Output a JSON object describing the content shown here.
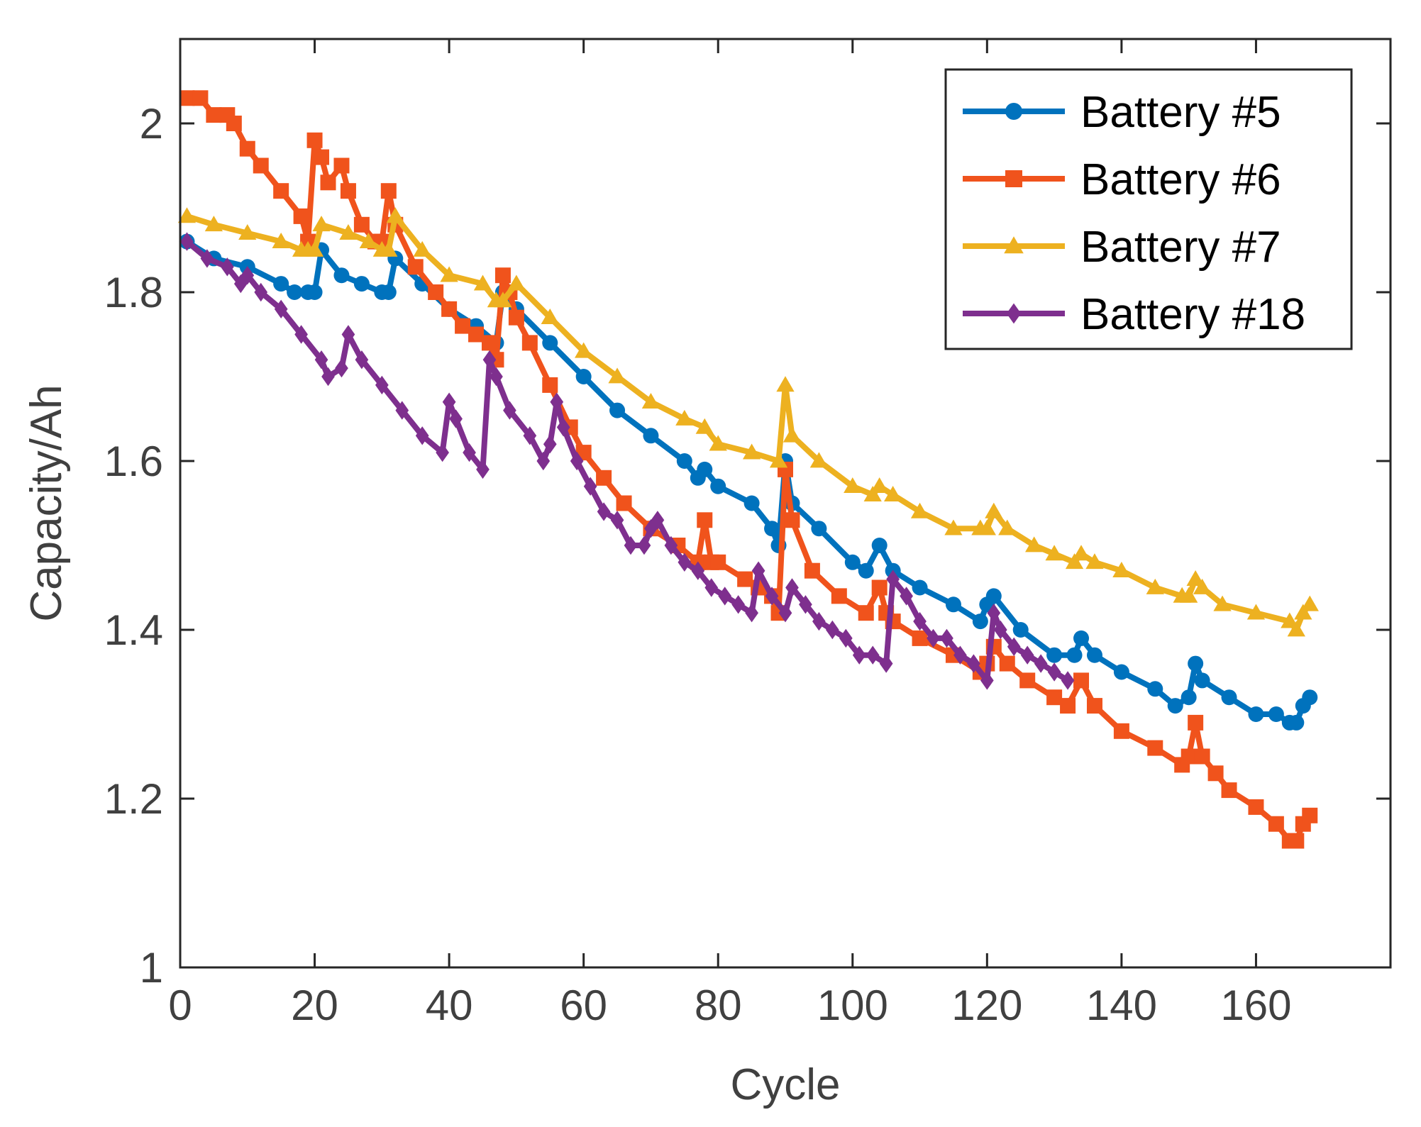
{
  "chart_data": {
    "type": "line",
    "title": "",
    "xlabel": "Cycle",
    "ylabel": "Capacity/Ah",
    "xlim": [
      0,
      180
    ],
    "ylim": [
      1,
      2.1
    ],
    "xticks": [
      0,
      20,
      40,
      60,
      80,
      100,
      120,
      140,
      160
    ],
    "xtick_labels": [
      "0",
      "20",
      "40",
      "60",
      "80",
      "100",
      "120",
      "140",
      "160"
    ],
    "yticks": [
      1,
      1.2,
      1.4,
      1.6,
      1.8,
      2
    ],
    "ytick_labels": [
      "1",
      "1.2",
      "1.4",
      "1.6",
      "1.8",
      "2"
    ],
    "grid": false,
    "legend_position": "top-right",
    "series": [
      {
        "name": "Battery #5",
        "color": "#0072BD",
        "marker": "circle",
        "x": [
          1,
          5,
          10,
          15,
          17,
          19,
          20,
          21,
          24,
          27,
          30,
          31,
          32,
          36,
          40,
          44,
          47,
          48,
          50,
          55,
          60,
          65,
          70,
          75,
          77,
          78,
          80,
          85,
          88,
          89,
          90,
          91,
          95,
          100,
          102,
          104,
          106,
          110,
          115,
          119,
          120,
          121,
          125,
          130,
          133,
          134,
          136,
          140,
          145,
          148,
          150,
          151,
          152,
          156,
          160,
          163,
          165,
          166,
          167,
          168
        ],
        "y": [
          1.86,
          1.84,
          1.83,
          1.81,
          1.8,
          1.8,
          1.8,
          1.85,
          1.82,
          1.81,
          1.8,
          1.8,
          1.84,
          1.81,
          1.78,
          1.76,
          1.74,
          1.8,
          1.78,
          1.74,
          1.7,
          1.66,
          1.63,
          1.6,
          1.58,
          1.59,
          1.57,
          1.55,
          1.52,
          1.5,
          1.6,
          1.55,
          1.52,
          1.48,
          1.47,
          1.5,
          1.47,
          1.45,
          1.43,
          1.41,
          1.43,
          1.44,
          1.4,
          1.37,
          1.37,
          1.39,
          1.37,
          1.35,
          1.33,
          1.31,
          1.32,
          1.36,
          1.34,
          1.32,
          1.3,
          1.3,
          1.29,
          1.29,
          1.31,
          1.32
        ]
      },
      {
        "name": "Battery #6",
        "color": "#F0531C",
        "marker": "square",
        "x": [
          1,
          3,
          5,
          7,
          8,
          10,
          12,
          15,
          18,
          19,
          20,
          21,
          22,
          24,
          25,
          27,
          29,
          30,
          31,
          32,
          35,
          38,
          40,
          42,
          44,
          46,
          47,
          48,
          49,
          50,
          52,
          55,
          58,
          60,
          63,
          66,
          70,
          74,
          77,
          78,
          79,
          80,
          84,
          86,
          88,
          89,
          90,
          91,
          94,
          98,
          102,
          104,
          105,
          106,
          110,
          115,
          119,
          120,
          121,
          123,
          126,
          130,
          132,
          134,
          136,
          140,
          145,
          149,
          150,
          151,
          152,
          154,
          156,
          160,
          163,
          165,
          166,
          167,
          168
        ],
        "y": [
          2.03,
          2.03,
          2.01,
          2.01,
          2.0,
          1.97,
          1.95,
          1.92,
          1.89,
          1.86,
          1.98,
          1.96,
          1.93,
          1.95,
          1.92,
          1.88,
          1.86,
          1.86,
          1.92,
          1.88,
          1.83,
          1.8,
          1.78,
          1.76,
          1.75,
          1.74,
          1.72,
          1.82,
          1.8,
          1.77,
          1.74,
          1.69,
          1.64,
          1.61,
          1.58,
          1.55,
          1.52,
          1.5,
          1.48,
          1.53,
          1.48,
          1.48,
          1.46,
          1.45,
          1.44,
          1.42,
          1.59,
          1.53,
          1.47,
          1.44,
          1.42,
          1.45,
          1.42,
          1.41,
          1.39,
          1.37,
          1.35,
          1.36,
          1.38,
          1.36,
          1.34,
          1.32,
          1.31,
          1.34,
          1.31,
          1.28,
          1.26,
          1.24,
          1.25,
          1.29,
          1.25,
          1.23,
          1.21,
          1.19,
          1.17,
          1.15,
          1.15,
          1.17,
          1.18
        ]
      },
      {
        "name": "Battery #7",
        "color": "#EDB120",
        "marker": "triangle",
        "x": [
          1,
          5,
          10,
          15,
          18,
          19,
          20,
          21,
          25,
          28,
          30,
          31,
          32,
          36,
          40,
          45,
          47,
          48,
          50,
          55,
          60,
          65,
          70,
          75,
          78,
          80,
          85,
          89,
          90,
          91,
          95,
          100,
          103,
          104,
          106,
          110,
          115,
          119,
          120,
          121,
          123,
          127,
          130,
          133,
          134,
          136,
          140,
          145,
          149,
          150,
          151,
          152,
          155,
          160,
          165,
          166,
          167,
          168
        ],
        "y": [
          1.89,
          1.88,
          1.87,
          1.86,
          1.85,
          1.85,
          1.85,
          1.88,
          1.87,
          1.86,
          1.85,
          1.85,
          1.89,
          1.85,
          1.82,
          1.81,
          1.79,
          1.79,
          1.81,
          1.77,
          1.73,
          1.7,
          1.67,
          1.65,
          1.64,
          1.62,
          1.61,
          1.6,
          1.69,
          1.63,
          1.6,
          1.57,
          1.56,
          1.57,
          1.56,
          1.54,
          1.52,
          1.52,
          1.52,
          1.54,
          1.52,
          1.5,
          1.49,
          1.48,
          1.49,
          1.48,
          1.47,
          1.45,
          1.44,
          1.44,
          1.46,
          1.45,
          1.43,
          1.42,
          1.41,
          1.4,
          1.42,
          1.43
        ]
      },
      {
        "name": "Battery #18",
        "color": "#7E2F8E",
        "marker": "diamond",
        "x": [
          1,
          4,
          7,
          9,
          10,
          12,
          15,
          18,
          21,
          22,
          24,
          25,
          27,
          30,
          33,
          36,
          39,
          40,
          41,
          43,
          45,
          46,
          47,
          49,
          52,
          54,
          55,
          56,
          57,
          59,
          61,
          63,
          65,
          67,
          69,
          70,
          71,
          73,
          75,
          77,
          79,
          81,
          83,
          85,
          86,
          88,
          90,
          91,
          93,
          95,
          97,
          99,
          101,
          103,
          105,
          106,
          108,
          110,
          112,
          114,
          116,
          118,
          120,
          121,
          122,
          124,
          126,
          128,
          130,
          132
        ],
        "y": [
          1.86,
          1.84,
          1.83,
          1.81,
          1.82,
          1.8,
          1.78,
          1.75,
          1.72,
          1.7,
          1.71,
          1.75,
          1.72,
          1.69,
          1.66,
          1.63,
          1.61,
          1.67,
          1.65,
          1.61,
          1.59,
          1.72,
          1.7,
          1.66,
          1.63,
          1.6,
          1.62,
          1.67,
          1.64,
          1.6,
          1.57,
          1.54,
          1.53,
          1.5,
          1.5,
          1.52,
          1.53,
          1.5,
          1.48,
          1.47,
          1.45,
          1.44,
          1.43,
          1.42,
          1.47,
          1.44,
          1.42,
          1.45,
          1.43,
          1.41,
          1.4,
          1.39,
          1.37,
          1.37,
          1.36,
          1.46,
          1.44,
          1.41,
          1.39,
          1.39,
          1.37,
          1.36,
          1.34,
          1.42,
          1.4,
          1.38,
          1.37,
          1.36,
          1.35,
          1.34
        ]
      }
    ]
  }
}
